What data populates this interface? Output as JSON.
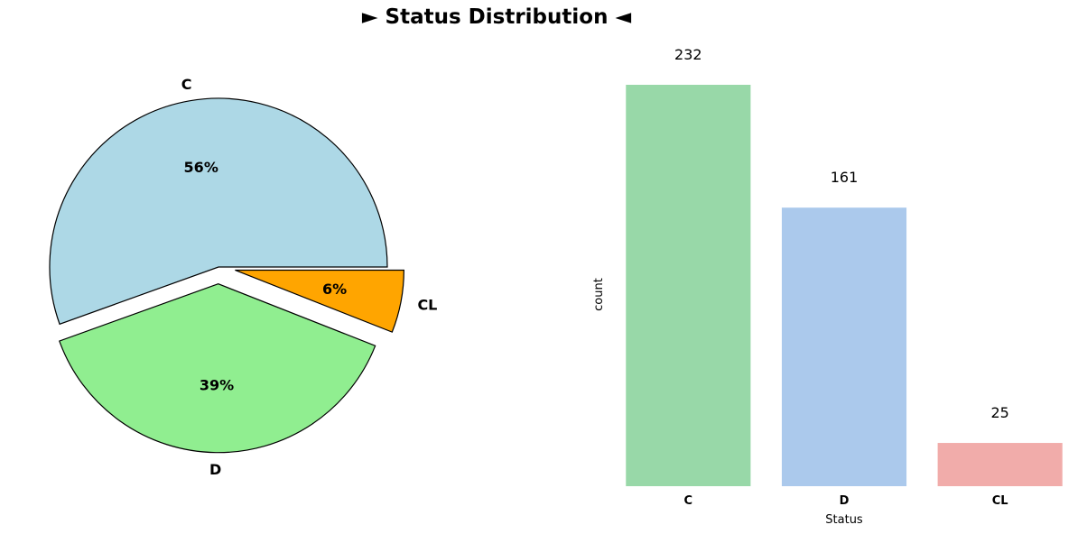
{
  "title": "► Status Distribution ◄",
  "chart_data": [
    {
      "type": "pie",
      "categories": [
        "C",
        "D",
        "CL"
      ],
      "percent_labels": [
        "56%",
        "39%",
        "6%"
      ],
      "values": [
        232,
        161,
        25
      ],
      "colors": [
        "#add8e6",
        "#90ee90",
        "#ffa500"
      ],
      "exploded": [
        false,
        true,
        true
      ],
      "edgecolor": "#000000"
    },
    {
      "type": "bar",
      "categories": [
        "C",
        "D",
        "CL"
      ],
      "values": [
        232,
        161,
        25
      ],
      "value_labels": [
        "232",
        "161",
        "25"
      ],
      "colors": [
        "#98d8a8",
        "#abc9ec",
        "#f1acaa"
      ],
      "xlabel": "Status",
      "ylabel": "count",
      "ylim": [
        0,
        232
      ],
      "grid": false
    }
  ]
}
